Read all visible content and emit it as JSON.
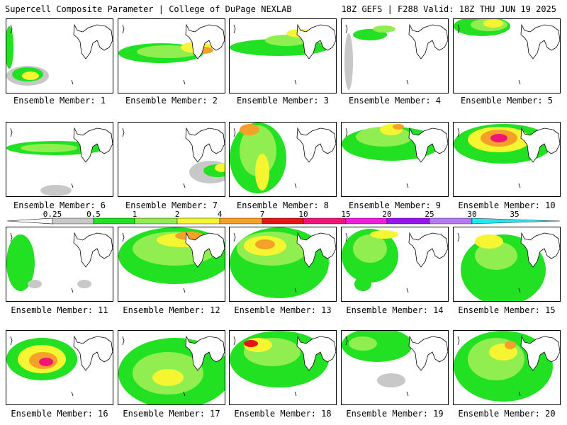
{
  "header": {
    "title": "Supercell Composite Parameter | College of DuPage NEXLAB",
    "run_info": "18Z GEFS | F288 Valid: 18Z THU JUN 19 2025"
  },
  "members": [
    "Ensemble Member: 1",
    "Ensemble Member: 2",
    "Ensemble Member: 3",
    "Ensemble Member: 4",
    "Ensemble Member: 5",
    "Ensemble Member: 6",
    "Ensemble Member: 7",
    "Ensemble Member: 8",
    "Ensemble Member: 9",
    "Ensemble Member: 10",
    "Ensemble Member: 11",
    "Ensemble Member: 12",
    "Ensemble Member: 13",
    "Ensemble Member: 14",
    "Ensemble Member: 15",
    "Ensemble Member: 16",
    "Ensemble Member: 17",
    "Ensemble Member: 18",
    "Ensemble Member: 19",
    "Ensemble Member: 20"
  ],
  "legend": {
    "ticks": [
      "0.25",
      "0.5",
      "1",
      "2",
      "4",
      "7",
      "10",
      "15",
      "20",
      "25",
      "30",
      "35"
    ],
    "colors": {
      "gray": "#c8c8c8",
      "green": "#22e022",
      "lightgreen": "#90ee50",
      "yellow": "#f5f532",
      "orange": "#f5a028",
      "red": "#e61414",
      "pink": "#f01478",
      "magenta": "#f01edc",
      "purple": "#9614f0",
      "lavender": "#b478f0",
      "cyan": "#28e6f0"
    }
  }
}
